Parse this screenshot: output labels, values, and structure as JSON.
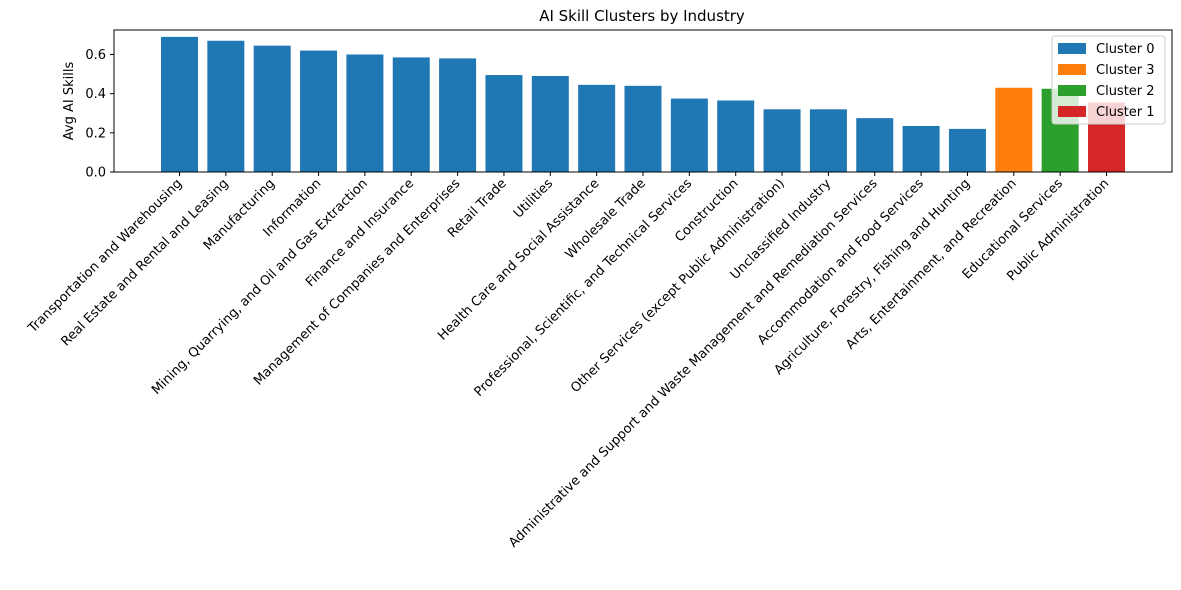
{
  "chart_data": {
    "type": "bar",
    "title": "AI Skill Clusters by Industry",
    "xlabel": "",
    "ylabel": "Avg AI Skills",
    "ylim": [
      0,
      0.725
    ],
    "yticks": [
      0.0,
      0.2,
      0.4,
      0.6
    ],
    "ytick_labels": [
      "0.0",
      "0.2",
      "0.4",
      "0.6"
    ],
    "grid": false,
    "legend_position": "top-right",
    "cluster_colors": {
      "Cluster 0": "#1f77b4",
      "Cluster 3": "#ff7f0e",
      "Cluster 2": "#2ca02c",
      "Cluster 1": "#d62728"
    },
    "legend": [
      "Cluster 0",
      "Cluster 3",
      "Cluster 2",
      "Cluster 1"
    ],
    "categories": [
      "Transportation and Warehousing",
      "Real Estate and Rental and Leasing",
      "Manufacturing",
      "Information",
      "Mining, Quarrying, and Oil and Gas Extraction",
      "Finance and Insurance",
      "Management of Companies and Enterprises",
      "Retail Trade",
      "Utilities",
      "Health Care and Social Assistance",
      "Wholesale Trade",
      "Professional, Scientific, and Technical Services",
      "Construction",
      "Other Services (except Public Administration)",
      "Unclassified Industry",
      "Administrative and Support and Waste Management and Remediation Services",
      "Accommodation and Food Services",
      "Agriculture, Forestry, Fishing and Hunting",
      "Arts, Entertainment, and Recreation",
      "Educational Services",
      "Public Administration"
    ],
    "values": [
      0.69,
      0.67,
      0.645,
      0.62,
      0.6,
      0.585,
      0.58,
      0.495,
      0.49,
      0.445,
      0.44,
      0.375,
      0.365,
      0.32,
      0.32,
      0.275,
      0.235,
      0.22,
      0.43,
      0.425,
      0.355
    ],
    "clusters": [
      "Cluster 0",
      "Cluster 0",
      "Cluster 0",
      "Cluster 0",
      "Cluster 0",
      "Cluster 0",
      "Cluster 0",
      "Cluster 0",
      "Cluster 0",
      "Cluster 0",
      "Cluster 0",
      "Cluster 0",
      "Cluster 0",
      "Cluster 0",
      "Cluster 0",
      "Cluster 0",
      "Cluster 0",
      "Cluster 0",
      "Cluster 3",
      "Cluster 2",
      "Cluster 1"
    ]
  }
}
